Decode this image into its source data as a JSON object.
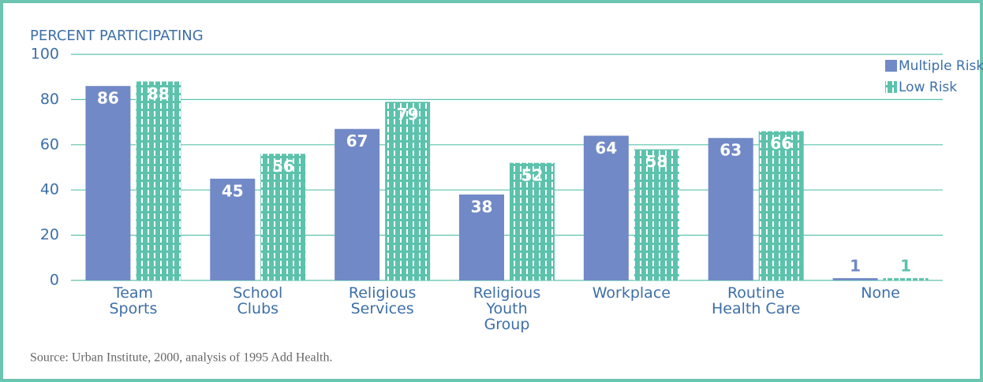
{
  "chart_data": {
    "type": "bar",
    "y_label": "PERCENT PARTICIPATING",
    "source": "Source: Urban Institute, 2000, analysis of 1995 Add Health.",
    "categories": [
      "Team\nSports",
      "School\nClubs",
      "Religious\nServices",
      "Religious\nYouth\nGroup",
      "Workplace",
      "Routine\nHealth Care",
      "None"
    ],
    "series": [
      {
        "name": "Multiple Risk",
        "color": "#7189c6",
        "pattern": "solid",
        "values": [
          86,
          45,
          67,
          38,
          64,
          63,
          1
        ]
      },
      {
        "name": "Low Risk",
        "color": "#5cc2ac",
        "pattern": "dashed-stripes",
        "values": [
          88,
          56,
          79,
          52,
          58,
          66,
          1
        ]
      }
    ],
    "ylim": [
      0,
      100
    ],
    "yticks": [
      0,
      20,
      40,
      60,
      80,
      100
    ],
    "grid": true,
    "legend": "top-right"
  }
}
